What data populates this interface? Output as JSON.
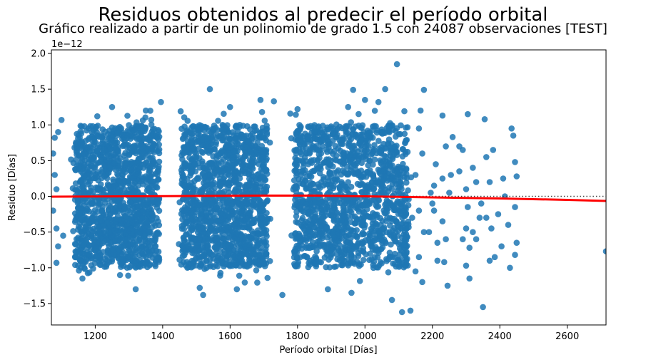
{
  "chart_data": {
    "type": "scatter",
    "title": "Residuos obtenidos al predecir el período orbital",
    "subtitle": "Gráfico realizado a partir de un polinomio de grado 1.5 con 24087 observaciones [TEST]",
    "xlabel": "Período orbital [Días]",
    "ylabel": "Residuo [Días]",
    "y_offset_label": "1e−12",
    "xlim": [
      1070,
      2715
    ],
    "ylim": [
      -1.8,
      2.05
    ],
    "xticks": [
      1200,
      1400,
      1600,
      1800,
      2000,
      2200,
      2400,
      2600
    ],
    "yticks": [
      -1.5,
      -1.0,
      -0.5,
      0.0,
      0.5,
      1.0,
      1.5,
      2.0
    ],
    "ytick_labels": [
      "−1.5",
      "−1.0",
      "−0.5",
      "0.0",
      "0.5",
      "1.0",
      "1.5",
      "2.0"
    ],
    "grid": false,
    "point_color": "#1f77b4",
    "fit_color": "#ff0000",
    "zero_line_color": "#404040",
    "dense_clusters": [
      {
        "x": [
          1140,
          1390
        ],
        "y": [
          -1.0,
          1.0
        ]
      },
      {
        "x": [
          1455,
          1710
        ],
        "y": [
          -1.0,
          1.0
        ]
      },
      {
        "x": [
          1790,
          2130
        ],
        "y": [
          -1.0,
          1.0
        ]
      }
    ],
    "sparse_points": [
      [
        2095,
        1.85
      ],
      [
        1540,
        1.5
      ],
      [
        1395,
        1.32
      ],
      [
        1690,
        1.35
      ],
      [
        2175,
        1.49
      ],
      [
        1965,
        1.49
      ],
      [
        2000,
        1.35
      ],
      [
        2060,
        1.5
      ],
      [
        1730,
        1.33
      ],
      [
        1950,
        1.25
      ],
      [
        1100,
        1.07
      ],
      [
        1090,
        0.9
      ],
      [
        1080,
        0.82
      ],
      [
        1075,
        0.6
      ],
      [
        1080,
        0.3
      ],
      [
        1085,
        0.1
      ],
      [
        1075,
        -0.2
      ],
      [
        1085,
        -0.45
      ],
      [
        1090,
        -0.7
      ],
      [
        1085,
        -0.93
      ],
      [
        1105,
        -0.55
      ],
      [
        1320,
        -1.3
      ],
      [
        1510,
        -1.28
      ],
      [
        1520,
        -1.38
      ],
      [
        1620,
        -1.3
      ],
      [
        1755,
        -1.38
      ],
      [
        1890,
        -1.3
      ],
      [
        2080,
        -1.45
      ],
      [
        2110,
        -1.62
      ],
      [
        2135,
        -1.6
      ],
      [
        1960,
        -1.35
      ],
      [
        2165,
        1.2
      ],
      [
        2160,
        0.95
      ],
      [
        2170,
        0.6
      ],
      [
        2150,
        0.3
      ],
      [
        2160,
        -0.2
      ],
      [
        2175,
        -0.5
      ],
      [
        2160,
        -0.85
      ],
      [
        2150,
        -1.05
      ],
      [
        2170,
        -1.2
      ],
      [
        2140,
        -0.3
      ],
      [
        2230,
        1.13
      ],
      [
        2260,
        0.83
      ],
      [
        2240,
        0.7
      ],
      [
        2210,
        0.45
      ],
      [
        2230,
        0.25
      ],
      [
        2250,
        0.05
      ],
      [
        2205,
        -0.2
      ],
      [
        2230,
        -0.35
      ],
      [
        2215,
        -0.65
      ],
      [
        2240,
        -0.6
      ],
      [
        2235,
        -0.92
      ],
      [
        2245,
        -1.25
      ],
      [
        2205,
        0.15
      ],
      [
        2195,
        0.05
      ],
      [
        2200,
        -0.1
      ],
      [
        2190,
        -0.5
      ],
      [
        2215,
        -0.9
      ],
      [
        2305,
        1.15
      ],
      [
        2290,
        0.65
      ],
      [
        2280,
        0.35
      ],
      [
        2300,
        0.1
      ],
      [
        2305,
        -0.15
      ],
      [
        2300,
        -0.45
      ],
      [
        2290,
        -0.6
      ],
      [
        2310,
        -0.72
      ],
      [
        2300,
        -0.97
      ],
      [
        2310,
        -1.15
      ],
      [
        2320,
        0.4
      ],
      [
        2330,
        0.2
      ],
      [
        2340,
        -0.3
      ],
      [
        2320,
        -0.5
      ],
      [
        2330,
        -0.6
      ],
      [
        2350,
        -1.55
      ],
      [
        2355,
        1.08
      ],
      [
        2360,
        0.55
      ],
      [
        2360,
        -0.3
      ],
      [
        2345,
        -0.1
      ],
      [
        2375,
        -0.45
      ],
      [
        2380,
        0.65
      ],
      [
        2370,
        0.2
      ],
      [
        2395,
        -0.25
      ],
      [
        2405,
        -0.7
      ],
      [
        2410,
        0.25
      ],
      [
        2415,
        0.0
      ],
      [
        2425,
        -0.4
      ],
      [
        2435,
        0.95
      ],
      [
        2440,
        0.85
      ],
      [
        2445,
        0.48
      ],
      [
        2450,
        0.28
      ],
      [
        2445,
        -0.15
      ],
      [
        2450,
        -0.65
      ],
      [
        2445,
        -0.82
      ],
      [
        2430,
        -1.0
      ],
      [
        2385,
        -0.85
      ],
      [
        2370,
        -0.9
      ],
      [
        2280,
        0.7
      ],
      [
        2255,
        0.3
      ],
      [
        2715,
        -0.77
      ],
      [
        1250,
        1.25
      ],
      [
        1350,
        1.2
      ],
      [
        1600,
        1.25
      ],
      [
        1800,
        1.22
      ],
      [
        2040,
        1.32
      ]
    ],
    "fit_line": {
      "x": [
        1070,
        1300,
        1500,
        1700,
        1850,
        2000,
        2200,
        2400,
        2600,
        2715
      ],
      "y": [
        -0.005,
        0.0,
        0.005,
        0.01,
        0.01,
        0.0,
        -0.015,
        -0.03,
        -0.05,
        -0.065
      ]
    },
    "zero_line": {
      "y": 0.0,
      "x_start": 2085
    }
  }
}
